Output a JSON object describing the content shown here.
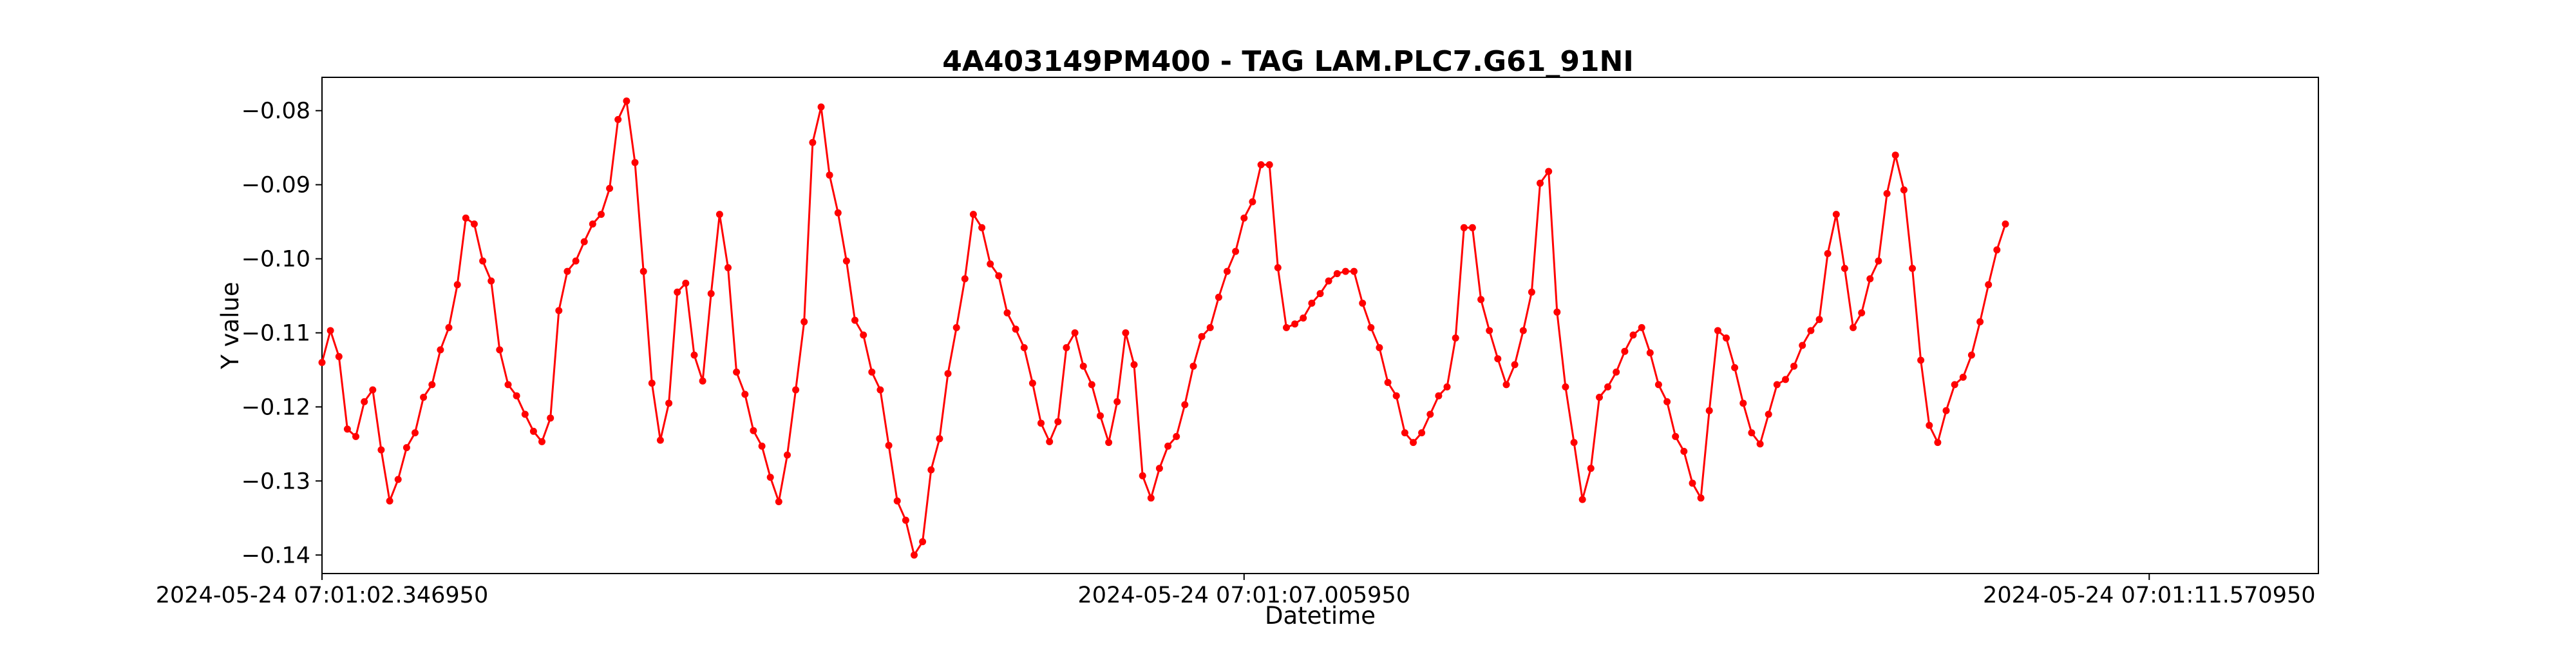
{
  "chart_data": {
    "type": "line",
    "title": "4A403149PM400 - TAG LAM.PLC7.G61_91NI",
    "xlabel": "Datetime",
    "ylabel": "Y value",
    "xlim": [
      -0.0,
      236.0
    ],
    "ylim": [
      -0.1425,
      -0.0755
    ],
    "grid": false,
    "legend": "none",
    "x_tick_labels": [
      {
        "pos": 0,
        "label": "2024-05-24 07:01:02.346950"
      },
      {
        "pos": 109,
        "label": "2024-05-24 07:01:07.005950"
      },
      {
        "pos": 216,
        "label": "2024-05-24 07:01:11.570950"
      }
    ],
    "y_ticks": [
      -0.14,
      -0.13,
      -0.12,
      -0.11,
      -0.1,
      -0.09,
      -0.08
    ],
    "y_tick_labels": [
      "−0.14",
      "−0.13",
      "−0.12",
      "−0.11",
      "−0.10",
      "−0.09",
      "−0.08"
    ],
    "series": [
      {
        "color": "#ff0000",
        "x_start": 0,
        "x_step": 1,
        "values": [
          -0.114,
          -0.1097,
          -0.1132,
          -0.123,
          -0.124,
          -0.1193,
          -0.1177,
          -0.1258,
          -0.1327,
          -0.1298,
          -0.1255,
          -0.1235,
          -0.1187,
          -0.117,
          -0.1123,
          -0.1093,
          -0.1035,
          -0.0945,
          -0.0953,
          -0.1003,
          -0.103,
          -0.1123,
          -0.117,
          -0.1185,
          -0.121,
          -0.1233,
          -0.1247,
          -0.1215,
          -0.107,
          -0.1017,
          -0.1003,
          -0.0977,
          -0.0953,
          -0.094,
          -0.0905,
          -0.0812,
          -0.0787,
          -0.087,
          -0.1017,
          -0.1168,
          -0.1245,
          -0.1195,
          -0.1045,
          -0.1033,
          -0.113,
          -0.1165,
          -0.1047,
          -0.094,
          -0.1012,
          -0.1153,
          -0.1183,
          -0.1232,
          -0.1253,
          -0.1295,
          -0.1328,
          -0.1265,
          -0.1177,
          -0.1085,
          -0.0843,
          -0.0795,
          -0.0887,
          -0.0938,
          -0.1003,
          -0.1083,
          -0.1103,
          -0.1153,
          -0.1177,
          -0.1252,
          -0.1327,
          -0.1353,
          -0.14,
          -0.1382,
          -0.1285,
          -0.1243,
          -0.1155,
          -0.1093,
          -0.1027,
          -0.094,
          -0.0958,
          -0.1007,
          -0.1023,
          -0.1073,
          -0.1095,
          -0.112,
          -0.1168,
          -0.1222,
          -0.1247,
          -0.122,
          -0.112,
          -0.11,
          -0.1145,
          -0.117,
          -0.1212,
          -0.1248,
          -0.1193,
          -0.11,
          -0.1143,
          -0.1293,
          -0.1323,
          -0.1283,
          -0.1253,
          -0.124,
          -0.1197,
          -0.1145,
          -0.1105,
          -0.1093,
          -0.1052,
          -0.1017,
          -0.099,
          -0.0945,
          -0.0923,
          -0.0873,
          -0.0873,
          -0.1012,
          -0.1093,
          -0.1088,
          -0.108,
          -0.106,
          -0.1047,
          -0.103,
          -0.102,
          -0.1017,
          -0.1017,
          -0.106,
          -0.1093,
          -0.112,
          -0.1167,
          -0.1185,
          -0.1235,
          -0.1248,
          -0.1235,
          -0.121,
          -0.1185,
          -0.1173,
          -0.1107,
          -0.0958,
          -0.0958,
          -0.1055,
          -0.1097,
          -0.1135,
          -0.117,
          -0.1143,
          -0.1097,
          -0.1045,
          -0.0898,
          -0.0882,
          -0.1072,
          -0.1173,
          -0.1248,
          -0.1325,
          -0.1283,
          -0.1187,
          -0.1173,
          -0.1153,
          -0.1125,
          -0.1103,
          -0.1093,
          -0.1127,
          -0.117,
          -0.1193,
          -0.124,
          -0.126,
          -0.1303,
          -0.1323,
          -0.1205,
          -0.1097,
          -0.1107,
          -0.1147,
          -0.1195,
          -0.1235,
          -0.125,
          -0.121,
          -0.117,
          -0.1163,
          -0.1145,
          -0.1117,
          -0.1097,
          -0.1082,
          -0.0993,
          -0.094,
          -0.1013,
          -0.1093,
          -0.1073,
          -0.1027,
          -0.1003,
          -0.0912,
          -0.086,
          -0.0907,
          -0.1013,
          -0.1137,
          -0.1225,
          -0.1248,
          -0.1205,
          -0.117,
          -0.116,
          -0.113,
          -0.1085,
          -0.1035,
          -0.0988,
          -0.0953
        ]
      }
    ]
  }
}
